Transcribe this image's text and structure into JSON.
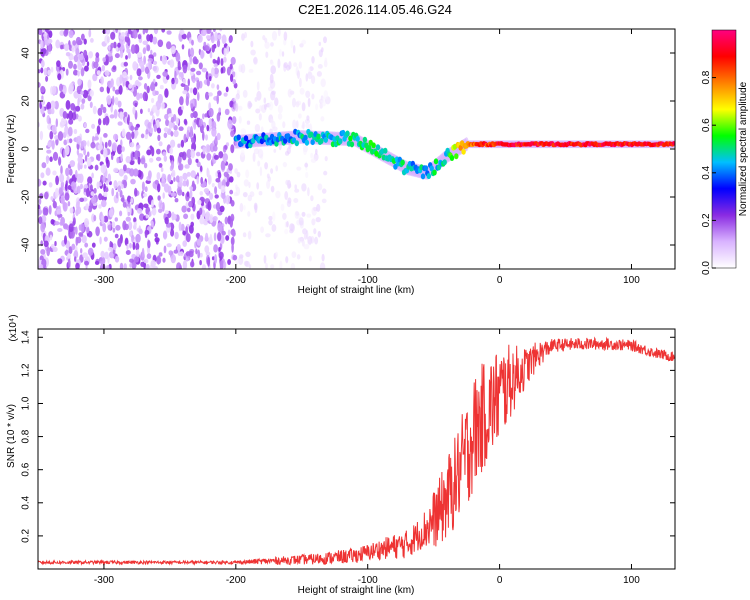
{
  "page_title": "C2E1.2026.114.05.46.G24",
  "chart_data": [
    {
      "type": "heatmap",
      "name": "spectrogram",
      "xlabel": "Height of straight line (km)",
      "ylabel": "Frequency (Hz)",
      "xlim": [
        -350,
        133
      ],
      "ylim": [
        -50,
        50
      ],
      "x_ticks": [
        -300,
        -200,
        -100,
        0,
        100
      ],
      "y_ticks": [
        -40,
        -20,
        0,
        20,
        40
      ],
      "colorbar": {
        "label": "Normalized spectral amplitude",
        "range": [
          0,
          1
        ],
        "ticks": [
          0.0,
          0.2,
          0.4,
          0.6,
          0.8
        ],
        "colors": [
          "#ffffff",
          "#d9b3ff",
          "#8a2be2",
          "#0000ff",
          "#00bfff",
          "#00ff00",
          "#ffff00",
          "#ff8000",
          "#ff0000",
          "#ff0080"
        ]
      },
      "features": [
        {
          "label": "noise",
          "x_range": [
            -350,
            -200
          ],
          "f_range": [
            -50,
            50
          ],
          "amplitude": 0.15
        },
        {
          "label": "weak noise",
          "x_range": [
            -200,
            -130
          ],
          "f_range": [
            -50,
            50
          ],
          "amplitude": 0.05
        },
        {
          "label": "signal",
          "track": [
            [
              -200,
              3
            ],
            [
              -150,
              5
            ],
            [
              -110,
              4
            ],
            [
              -90,
              -2
            ],
            [
              -70,
              -8
            ],
            [
              -55,
              -10
            ],
            [
              -40,
              -3
            ],
            [
              -25,
              2
            ],
            [
              0,
              2
            ],
            [
              133,
              2
            ]
          ],
          "amplitude": [
            0.4,
            0.45,
            0.5,
            0.5,
            0.45,
            0.45,
            0.5,
            0.8,
            0.9,
            0.9
          ]
        }
      ]
    },
    {
      "type": "line",
      "name": "snr",
      "xlabel": "Height of straight line (km)",
      "ylabel": "SNR (10 * v/v)",
      "scale_label": "(x10⁴)",
      "xlim": [
        -350,
        133
      ],
      "ylim": [
        0,
        1.45
      ],
      "x_ticks": [
        -300,
        -200,
        -100,
        0,
        100
      ],
      "y_ticks": [
        0.2,
        0.4,
        0.6,
        0.8,
        1.0,
        1.2,
        1.4
      ],
      "color": "#ee3333",
      "anchors": {
        "x": [
          -350,
          -250,
          -200,
          -170,
          -140,
          -110,
          -90,
          -70,
          -55,
          -45,
          -35,
          -25,
          -18,
          -10,
          0,
          10,
          20,
          30,
          40,
          60,
          80,
          100,
          120,
          133
        ],
        "y": [
          0.04,
          0.04,
          0.04,
          0.05,
          0.06,
          0.08,
          0.12,
          0.15,
          0.25,
          0.35,
          0.5,
          0.7,
          0.85,
          0.95,
          1.05,
          1.15,
          1.22,
          1.3,
          1.35,
          1.36,
          1.36,
          1.35,
          1.3,
          1.28
        ]
      },
      "noise": {
        "x": [
          -350,
          -200,
          -150,
          -100,
          -60,
          -40,
          -20,
          0,
          20,
          40,
          133
        ],
        "amp": [
          0.01,
          0.01,
          0.03,
          0.05,
          0.1,
          0.25,
          0.35,
          0.3,
          0.12,
          0.04,
          0.03
        ]
      }
    }
  ]
}
